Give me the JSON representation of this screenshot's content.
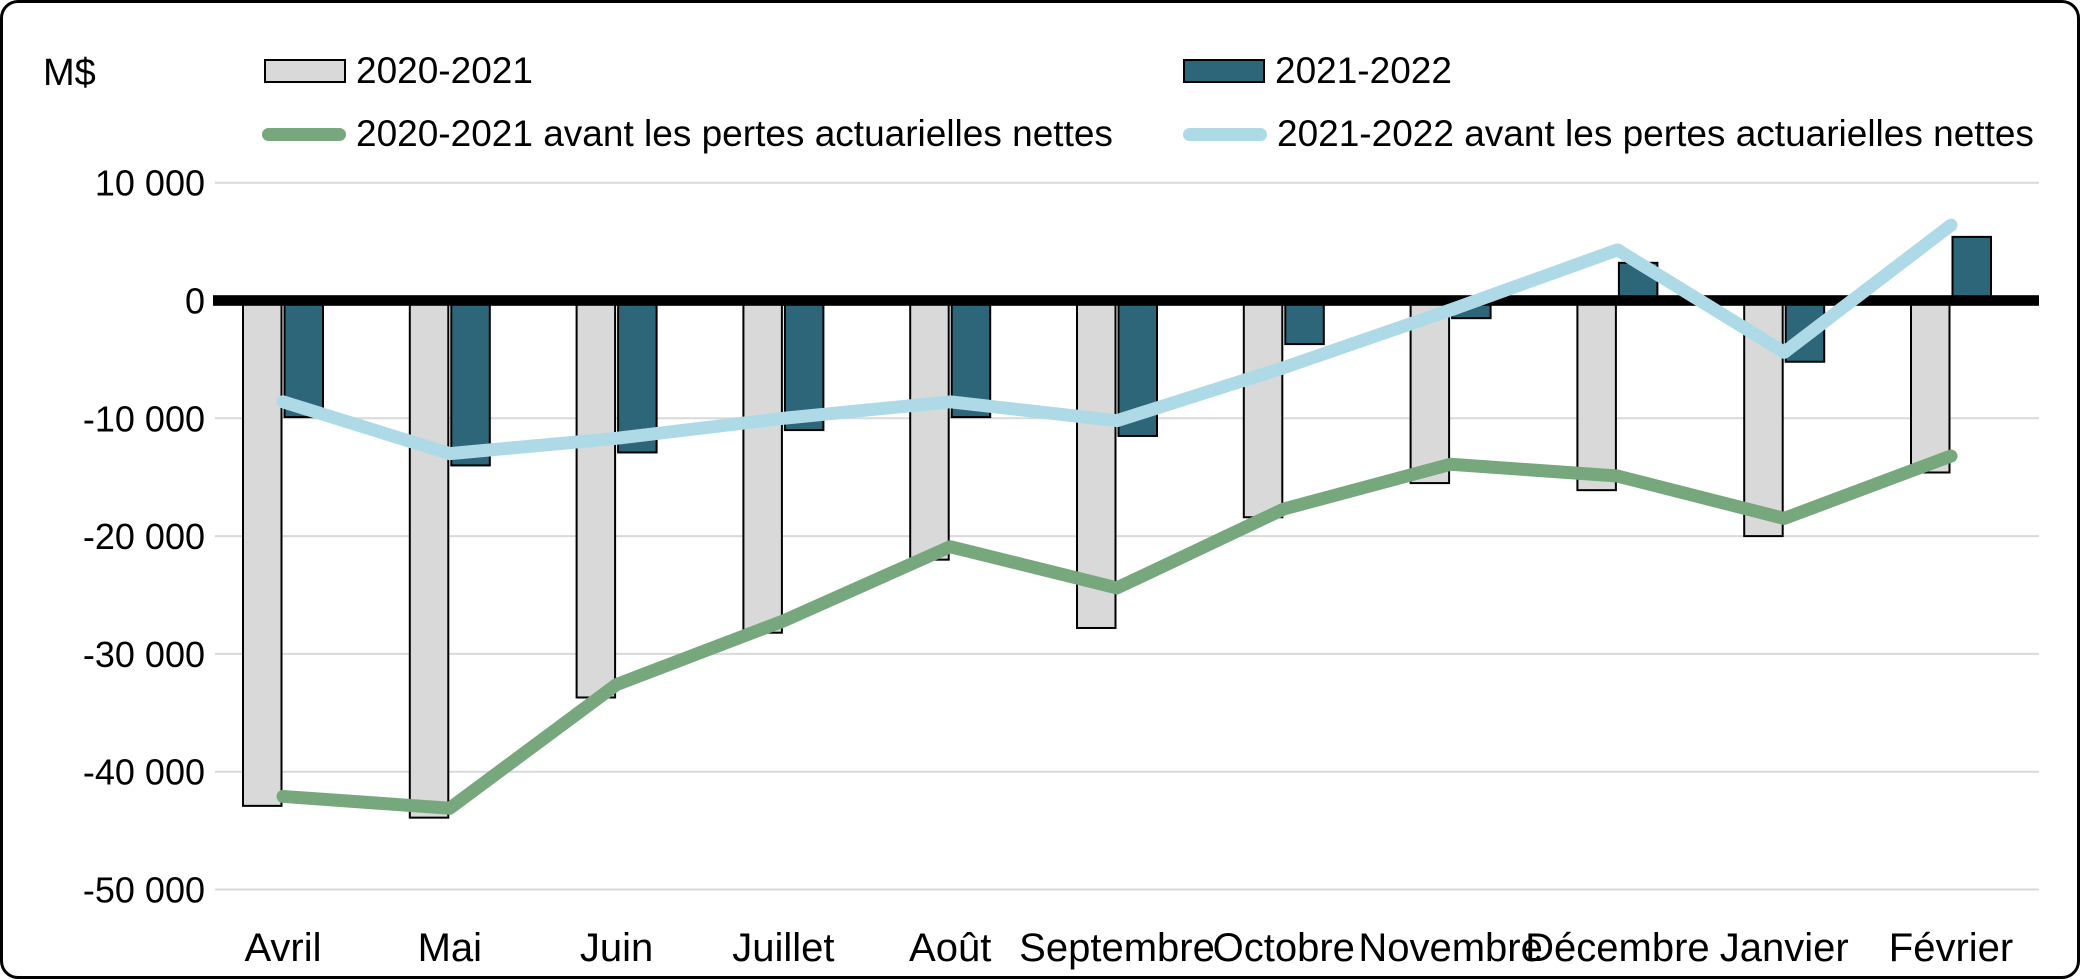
{
  "figure": {
    "unit_label": "M$",
    "background": "#FFFFFF",
    "frame_color": "#000000",
    "gridline_color": "#D9D9D9",
    "zero_line_color": "#000000"
  },
  "legend": [
    {
      "label": "2020-2021",
      "type": "bar",
      "color": "#D9D9D9"
    },
    {
      "label": "2021-2022",
      "type": "bar",
      "color": "#2D6678"
    },
    {
      "label": "2020-2021 avant les pertes actuarielles nettes",
      "type": "line",
      "color": "#77A77C"
    },
    {
      "label": "2021-2022 avant les pertes actuarielles nettes",
      "type": "line",
      "color": "#AEDAE8"
    }
  ],
  "chart_data": {
    "type": "bar",
    "subtype": "grouped monthly bars with two line overlays",
    "title": "",
    "ylabel": "M$",
    "xlabel": "",
    "categories": [
      "Avril",
      "Mai",
      "Juin",
      "Juillet",
      "Août",
      "Septembre",
      "Octobre",
      "Novembre",
      "Décembre",
      "Janvier",
      "Février"
    ],
    "series": [
      {
        "name": "2020-2021",
        "type": "bar",
        "color": "#D9D9D9",
        "values": [
          -42900,
          -43900,
          -33700,
          -28200,
          -22000,
          -27800,
          -18400,
          -15500,
          -16100,
          -20000,
          -14600
        ]
      },
      {
        "name": "2021-2022",
        "type": "bar",
        "color": "#2D6678",
        "values": [
          -9900,
          -14000,
          -12900,
          -11000,
          -9900,
          -11500,
          -3700,
          -1500,
          3200,
          -5200,
          5400
        ]
      },
      {
        "name": "2020-2021 avant les pertes actuarielles nettes",
        "type": "line",
        "color": "#77A77C",
        "values": [
          -42100,
          -43100,
          -32600,
          -27200,
          -20900,
          -24400,
          -17700,
          -13900,
          -14900,
          -18500,
          -13200
        ]
      },
      {
        "name": "2021-2022 avant les pertes actuarielles nettes",
        "type": "line",
        "color": "#AEDAE8",
        "values": [
          -8600,
          -13000,
          -11700,
          -10000,
          -8600,
          -10200,
          -5700,
          -800,
          4300,
          -4400,
          6400
        ]
      }
    ],
    "ylim": [
      -50000,
      10000
    ],
    "yticks": [
      10000,
      0,
      -10000,
      -20000,
      -30000,
      -40000,
      -50000
    ],
    "ytick_labels": [
      "10 000",
      "0",
      "-10 000",
      "-20 000",
      "-30 000",
      "-40 000",
      "-50 000"
    ],
    "grid": "horizontal light-gray gridlines",
    "zero_line": "thick black horizontal line at 0",
    "legend_position": "top"
  }
}
